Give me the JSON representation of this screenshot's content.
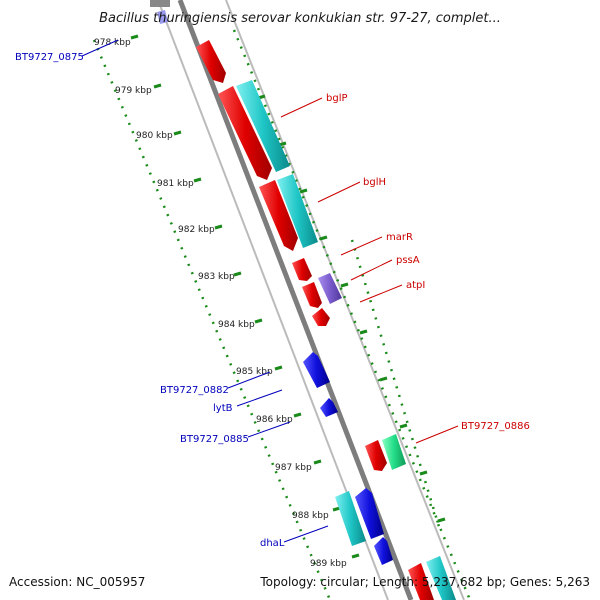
{
  "title": "Bacillus thuringiensis serovar konkukian str. 97-27, complet...",
  "footer": {
    "accession": "Accession: NC_005957",
    "topology": "Topology: circular; Length: 5,237,682 bp; Genes: 5,263"
  },
  "kbp_ticks": [
    "978 kbp",
    "979 kbp",
    "980 kbp",
    "981 kbp",
    "982 kbp",
    "983 kbp",
    "984 kbp",
    "985 kbp",
    "986 kbp",
    "987 kbp",
    "988 kbp",
    "989 kbp"
  ],
  "gene_labels": {
    "left": [
      "BT9727_0875",
      "BT9727_0882",
      "lytB",
      "BT9727_0885",
      "dhaL"
    ],
    "right": [
      "bglP",
      "bglH",
      "marR",
      "pssA",
      "atpI",
      "BT9727_0886"
    ]
  },
  "colors": {
    "forward_cds": "#ee1111",
    "forward_other": "#22c8c8",
    "reverse_cds": "#1111dd",
    "rna": "#7a5ccc",
    "green_feature": "#22dd88",
    "backbone": "#888888",
    "tick_green": "#1a8a1a",
    "label_red": "#cc0000",
    "label_blue": "#0000bb"
  }
}
